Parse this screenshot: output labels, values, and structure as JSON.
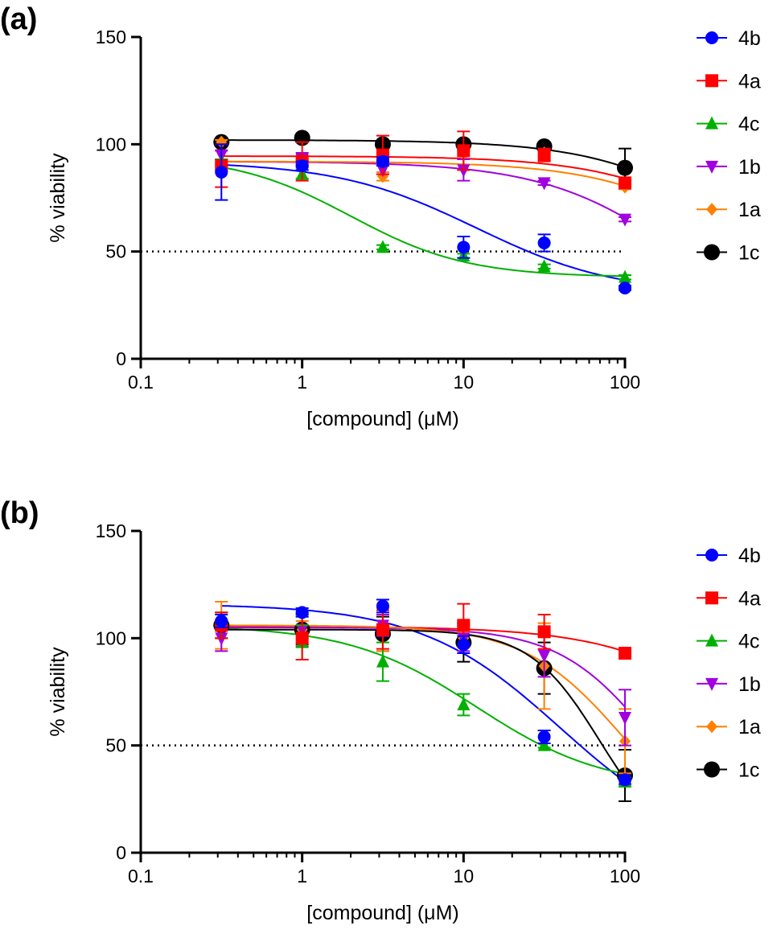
{
  "chart_data": [
    {
      "type": "line",
      "panel_label": "(a)",
      "xlabel": "[compound] (μM)",
      "ylabel": "% viability",
      "xscale": "log",
      "xlim": [
        0.1,
        100
      ],
      "ylim": [
        0,
        150
      ],
      "xticks": [
        "0.1",
        "1",
        "10",
        "100"
      ],
      "yticks": [
        "0",
        "50",
        "100",
        "150"
      ],
      "reference_line": 50,
      "legend_position": "right",
      "x": [
        0.316,
        1,
        3.16,
        10,
        31.6,
        100
      ],
      "series": [
        {
          "name": "4b",
          "color": "#0000ff",
          "marker": "circle",
          "values": [
            87,
            90,
            92,
            52,
            54,
            33
          ],
          "err": [
            13,
            2,
            2,
            5,
            4,
            1
          ],
          "fit": {
            "top": 92,
            "bottom": 30,
            "ec50": 12,
            "hill": 1
          }
        },
        {
          "name": "4a",
          "color": "#ff0000",
          "marker": "square",
          "values": [
            90,
            92,
            95,
            97,
            95,
            82
          ],
          "err": [
            10,
            9,
            9,
            9,
            3,
            2
          ],
          "fit": {
            "top": 94.5,
            "bottom": 0,
            "ec50": 800,
            "hill": 1
          }
        },
        {
          "name": "4c",
          "color": "#00b000",
          "marker": "triangle-up",
          "values": [
            92,
            86,
            52,
            48,
            43,
            38
          ],
          "err": [
            1,
            2,
            1,
            1,
            1,
            1
          ],
          "fit": {
            "top": 95,
            "bottom": 38,
            "ec50": 2,
            "hill": 1.2
          }
        },
        {
          "name": "1b",
          "color": "#a000e0",
          "marker": "triangle-down",
          "values": [
            95,
            93,
            88,
            88,
            82,
            65
          ],
          "err": [
            2,
            3,
            2,
            5,
            1,
            1
          ],
          "fit": {
            "top": 92,
            "bottom": 0,
            "ec50": 250,
            "hill": 1
          }
        },
        {
          "name": "1a",
          "color": "#ff8000",
          "marker": "diamond",
          "values": [
            101,
            91,
            85,
            95,
            96,
            80
          ],
          "err": [
            1,
            2,
            2,
            2,
            1,
            1
          ],
          "fit": {
            "top": 92,
            "bottom": 0,
            "ec50": 700,
            "hill": 1
          }
        },
        {
          "name": "1c",
          "color": "#000000",
          "marker": "circle-large",
          "values": [
            101,
            103,
            100,
            100,
            99,
            89
          ],
          "err": [
            1,
            1,
            1,
            1,
            1,
            9
          ],
          "fit": {
            "top": 102,
            "bottom": 0,
            "ec50": 700,
            "hill": 1
          }
        }
      ]
    },
    {
      "type": "line",
      "panel_label": "(b)",
      "xlabel": "[compound] (μM)",
      "ylabel": "% viability",
      "xscale": "log",
      "xlim": [
        0.1,
        100
      ],
      "ylim": [
        0,
        150
      ],
      "xticks": [
        "0.1",
        "1",
        "10",
        "100"
      ],
      "yticks": [
        "0",
        "50",
        "100",
        "150"
      ],
      "reference_line": 50,
      "legend_position": "right",
      "x": [
        0.316,
        1,
        3.16,
        10,
        31.6,
        100
      ],
      "series": [
        {
          "name": "4b",
          "color": "#0000ff",
          "marker": "circle",
          "values": [
            108,
            112,
            115,
            97,
            54,
            34
          ],
          "err": [
            3,
            2,
            3,
            4,
            3,
            2
          ],
          "fit": {
            "top": 116,
            "bottom": 0,
            "ec50": 40,
            "hill": 1
          }
        },
        {
          "name": "4a",
          "color": "#ff0000",
          "marker": "square",
          "values": [
            106,
            100,
            104,
            106,
            103,
            93
          ],
          "err": [
            6,
            10,
            9,
            10,
            8,
            2
          ],
          "fit": {
            "top": 105.5,
            "bottom": 0,
            "ec50": 800,
            "hill": 1
          }
        },
        {
          "name": "4c",
          "color": "#00b000",
          "marker": "triangle-up",
          "values": [
            106,
            98,
            89,
            69,
            50,
            33
          ],
          "err": [
            6,
            8,
            9,
            5,
            1,
            2
          ],
          "fit": {
            "top": 106,
            "bottom": 30,
            "ec50": 12,
            "hill": 1.1
          }
        },
        {
          "name": "1b",
          "color": "#a000e0",
          "marker": "triangle-down",
          "values": [
            100,
            104,
            106,
            100,
            92,
            63
          ],
          "err": [
            6,
            8,
            5,
            6,
            10,
            13
          ],
          "fit": {
            "top": 105,
            "bottom": 0,
            "ec50": 150,
            "hill": 1.5
          }
        },
        {
          "name": "1a",
          "color": "#ff8000",
          "marker": "diamond",
          "values": [
            106,
            104,
            104,
            100,
            87,
            52
          ],
          "err": [
            11,
            4,
            10,
            3,
            20,
            15
          ],
          "fit": {
            "top": 106,
            "bottom": 0,
            "ec50": 100,
            "hill": 1.4
          }
        },
        {
          "name": "1c",
          "color": "#000000",
          "marker": "circle-large",
          "values": [
            106,
            104,
            102,
            98,
            86,
            36
          ],
          "err": [
            6,
            7,
            8,
            9,
            12,
            12
          ],
          "fit": {
            "top": 104,
            "bottom": 0,
            "ec50": 70,
            "hill": 2
          }
        }
      ]
    }
  ]
}
